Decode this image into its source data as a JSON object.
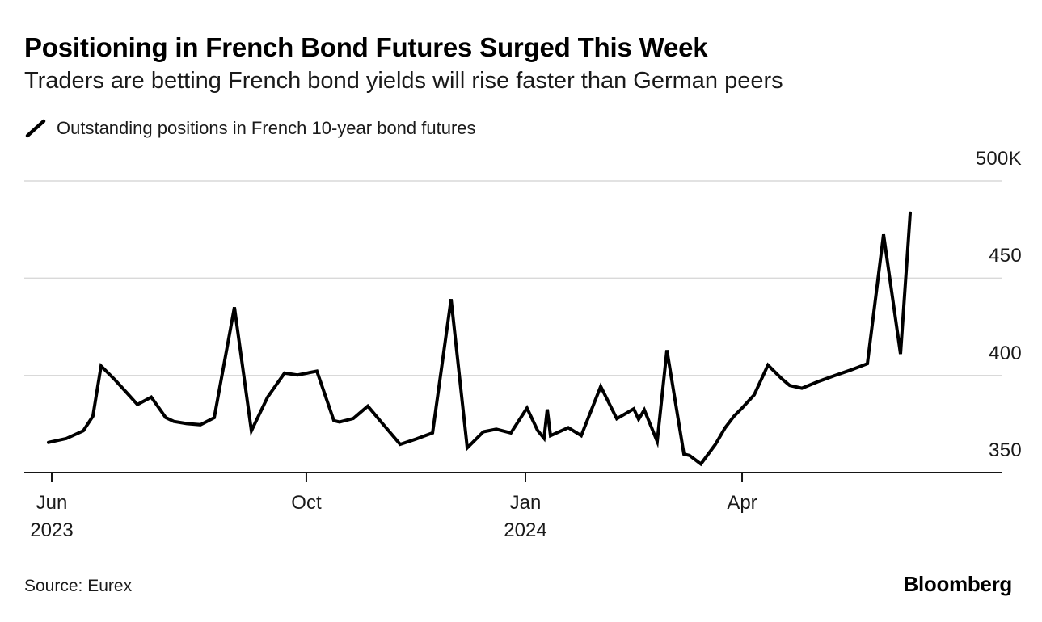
{
  "header": {
    "title": "Positioning in French Bond Futures Surged This Week",
    "subtitle": "Traders are betting French bond yields will rise faster than German peers"
  },
  "legend": {
    "marker": "diagonal-line-swatch",
    "label": "Outstanding positions in French 10-year bond futures"
  },
  "footer": {
    "source": "Source: Eurex",
    "brand": "Bloomberg"
  },
  "chart_data": {
    "type": "line",
    "title": "Positioning in French Bond Futures Surged This Week",
    "grid": "horizontal",
    "legend_position": "top-left",
    "y_axis": {
      "side": "right",
      "min": 350,
      "max": 500,
      "ticks": [
        {
          "value": 350,
          "label": "350"
        },
        {
          "value": 400,
          "label": "400"
        },
        {
          "value": 450,
          "label": "450"
        },
        {
          "value": 500,
          "label": "500K"
        }
      ]
    },
    "x_axis": {
      "unit": "fraction of plot width (Jun 2023 - Jun 2024 weekly timeline)",
      "ticks": [
        {
          "pos": 0.0281,
          "label": "Jun",
          "sublabel": "2023"
        },
        {
          "pos": 0.2884,
          "label": "Oct",
          "sublabel": ""
        },
        {
          "pos": 0.5124,
          "label": "Jan",
          "sublabel": "2024"
        },
        {
          "pos": 0.7339,
          "label": "Apr",
          "sublabel": ""
        }
      ]
    },
    "series": [
      {
        "name": "Outstanding positions in French 10-year bond futures",
        "color": "#000000",
        "points": [
          [
            0.0248,
            365.5
          ],
          [
            0.043,
            367.5
          ],
          [
            0.0603,
            371.5
          ],
          [
            0.0702,
            379.0
          ],
          [
            0.0785,
            404.8
          ],
          [
            0.0926,
            397.8
          ],
          [
            0.1058,
            390.5
          ],
          [
            0.1157,
            385.0
          ],
          [
            0.1298,
            388.8
          ],
          [
            0.1446,
            378.3
          ],
          [
            0.1529,
            376.3
          ],
          [
            0.1661,
            375.2
          ],
          [
            0.1802,
            374.6
          ],
          [
            0.1942,
            378.2
          ],
          [
            0.2149,
            435.0
          ],
          [
            0.2322,
            371.5
          ],
          [
            0.2488,
            388.8
          ],
          [
            0.2661,
            401.2
          ],
          [
            0.2793,
            400.2
          ],
          [
            0.2992,
            402.2
          ],
          [
            0.3165,
            376.7
          ],
          [
            0.3223,
            376.0
          ],
          [
            0.3364,
            377.8
          ],
          [
            0.3512,
            384.2
          ],
          [
            0.3678,
            374.3
          ],
          [
            0.3843,
            364.5
          ],
          [
            0.4008,
            367.3
          ],
          [
            0.4174,
            370.4
          ],
          [
            0.4364,
            439.2
          ],
          [
            0.4529,
            362.7
          ],
          [
            0.4694,
            371.0
          ],
          [
            0.4826,
            372.3
          ],
          [
            0.4975,
            370.4
          ],
          [
            0.514,
            383.2
          ],
          [
            0.5248,
            371.7
          ],
          [
            0.5314,
            367.6
          ],
          [
            0.5347,
            382.5
          ],
          [
            0.538,
            369.0
          ],
          [
            0.5562,
            373.1
          ],
          [
            0.5694,
            369.0
          ],
          [
            0.5893,
            394.3
          ],
          [
            0.6058,
            377.7
          ],
          [
            0.6231,
            382.8
          ],
          [
            0.6281,
            377.4
          ],
          [
            0.6339,
            382.3
          ],
          [
            0.6471,
            366.0
          ],
          [
            0.657,
            413.0
          ],
          [
            0.6744,
            359.5
          ],
          [
            0.6802,
            358.8
          ],
          [
            0.6917,
            354.4
          ],
          [
            0.7066,
            364.5
          ],
          [
            0.7165,
            373.0
          ],
          [
            0.7256,
            379.0
          ],
          [
            0.7339,
            383.2
          ],
          [
            0.7463,
            390.0
          ],
          [
            0.7603,
            405.3
          ],
          [
            0.7744,
            398.3
          ],
          [
            0.7826,
            394.8
          ],
          [
            0.795,
            393.4
          ],
          [
            0.8116,
            396.8
          ],
          [
            0.8281,
            399.8
          ],
          [
            0.8446,
            402.7
          ],
          [
            0.862,
            406.0
          ],
          [
            0.8785,
            472.5
          ],
          [
            0.8959,
            411.0
          ],
          [
            0.9058,
            483.5
          ]
        ]
      }
    ],
    "colors": {
      "line": "#000000",
      "grid": "#d9d9d9",
      "axis": "#161616",
      "text": "#1a1a1a",
      "background": "#ffffff"
    }
  }
}
